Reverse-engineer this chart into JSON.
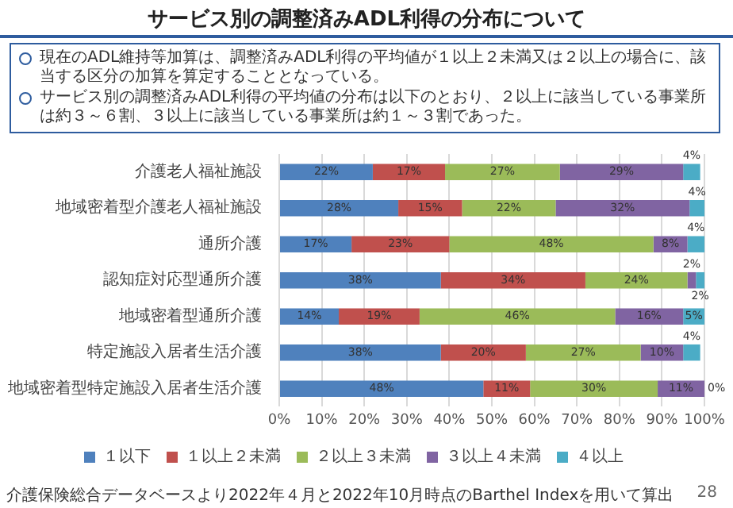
{
  "chart_data": {
    "type": "bar",
    "orientation": "horizontal",
    "stacked": true,
    "grid": "x",
    "legend": "bottom",
    "title": "サービス別の調整済みADL利得の分布について",
    "annotations": [
      "現在のADL維持等加算は、調整済みADL利得の平均値が１以上２未満又は２以上の場合に、該当する区分の加算を算定することとなっている。",
      "サービス別の調整済みADL利得の平均値の分布は以下のとおり、２以上に該当している事業所は約３～６割、３以上に該当している事業所は約１～３割であった。",
      "介護保険総合データベースより2022年４月と2022年10月時点のBarthel Indexを用いて算出",
      "28"
    ],
    "categories": [
      "介護老人福祉施設",
      "地域密着型介護老人福祉施設",
      "通所介護",
      "認知症対応型通所介護",
      "地域密着型通所介護",
      "特定施設入居者生活介護",
      "地域密着型特定施設入居者生活介護"
    ],
    "xlim": [
      0,
      100
    ],
    "xticks": [
      {
        "value": 0,
        "label": "0%"
      },
      {
        "value": 10,
        "label": "10%"
      },
      {
        "value": 20,
        "label": "20%"
      },
      {
        "value": 30,
        "label": "30%"
      },
      {
        "value": 40,
        "label": "40%"
      },
      {
        "value": 50,
        "label": "50%"
      },
      {
        "value": 60,
        "label": "60%"
      },
      {
        "value": 70,
        "label": "70%"
      },
      {
        "value": 80,
        "label": "80%"
      },
      {
        "value": 90,
        "label": "90%"
      },
      {
        "value": 100,
        "label": "100%"
      }
    ],
    "series": [
      {
        "name": "１以下",
        "color": "#4f81bd",
        "values": [
          22,
          28,
          17,
          38,
          14,
          38,
          48
        ],
        "value_labels": [
          "22%",
          "28%",
          "17%",
          "38%",
          "14%",
          "38%",
          "48%"
        ]
      },
      {
        "name": "１以上２未満",
        "color": "#c0504d",
        "values": [
          17,
          15,
          23,
          34,
          19,
          20,
          11
        ],
        "value_labels": [
          "17%",
          "15%",
          "23%",
          "34%",
          "19%",
          "20%",
          "11%"
        ]
      },
      {
        "name": "２以上３未満",
        "color": "#9bbb59",
        "values": [
          27,
          22,
          48,
          24,
          46,
          27,
          30
        ],
        "value_labels": [
          "27%",
          "22%",
          "48%",
          "24%",
          "46%",
          "27%",
          "30%"
        ]
      },
      {
        "name": "３以上４未満",
        "color": "#8064a2",
        "values": [
          29,
          31.5,
          8,
          2,
          16,
          10,
          11
        ],
        "value_labels": [
          "29%",
          "32%",
          "8%",
          "2%",
          "16%",
          "10%",
          "11%"
        ]
      },
      {
        "name": "４以上",
        "color": "#4bacc6",
        "values": [
          4,
          3.5,
          4,
          2,
          5,
          4,
          0
        ],
        "value_labels": [
          "4%",
          "4%",
          "4%",
          "2%",
          "5%",
          "4%",
          "0%"
        ]
      }
    ]
  }
}
